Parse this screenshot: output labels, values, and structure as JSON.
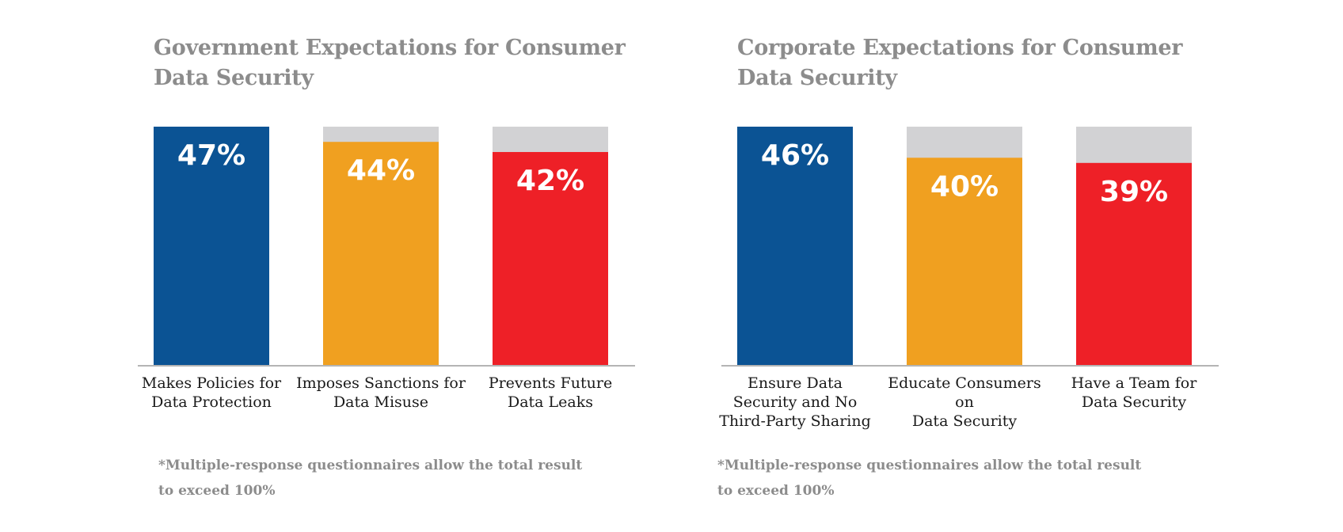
{
  "colors": {
    "series": [
      "#0b5394",
      "#f0a020",
      "#ee2027"
    ],
    "track": "#d2d2d4",
    "baseline": "#b4b4b4",
    "title": "#8c8c8c"
  },
  "chart_data": [
    {
      "type": "bar",
      "title": "Government Expectations for Consumer Data Security",
      "categories": [
        "Makes Policies for\nData Protection",
        "Imposes Sanctions for\nData Misuse",
        "Prevents Future\nData Leaks"
      ],
      "values": [
        47,
        44,
        42
      ],
      "data_labels": [
        "47%",
        "44%",
        "42%"
      ],
      "ylim": [
        0,
        47
      ],
      "footnote": "*Multiple-response questionnaires allow the total result to exceed 100%"
    },
    {
      "type": "bar",
      "title": "Corporate Expectations for Consumer Data Security",
      "categories": [
        "Ensure Data\nSecurity and No\nThird-Party Sharing",
        "Educate Consumers on\nData Security",
        "Have a Team for\nData Security"
      ],
      "values": [
        46,
        40,
        39
      ],
      "data_labels": [
        "46%",
        "40%",
        "39%"
      ],
      "ylim": [
        0,
        46
      ],
      "footnote": "*Multiple-response questionnaires allow the total result to exceed 100%"
    }
  ]
}
